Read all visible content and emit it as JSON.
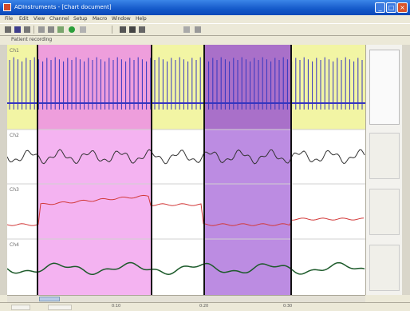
{
  "colors": {
    "selection_pink": "#f2a6ee",
    "selection_purple": "#a566d8",
    "highlight_yellow": "#f2f5a4",
    "trace_blue": "#3535c0",
    "trace_red": "#d23a3a",
    "trace_green": "#1c5a2a",
    "trace_black": "#333333",
    "titlebar": "#1459c9"
  },
  "window": {
    "title": "ADInstruments - [Chart document]",
    "minimize_icon": "minimize-icon",
    "maximize_icon": "maximize-icon",
    "close_icon": "close-icon"
  },
  "menu": [
    "File",
    "Edit",
    "View",
    "Channel",
    "Setup",
    "Macro",
    "Window",
    "Help"
  ],
  "toolbar": {
    "icons": [
      "open-icon",
      "save-icon",
      "print-icon",
      "cut-icon",
      "copy-icon",
      "paste-icon",
      "record-icon",
      "start-icon",
      "zoom-icon",
      "marker-icon",
      "comment-icon",
      "settings-icon"
    ]
  },
  "document": {
    "file_label": "Patient recording"
  },
  "channels": [
    {
      "label": "Ch1",
      "color": "trace_blue"
    },
    {
      "label": "Ch2",
      "color": "trace_black"
    },
    {
      "label": "Ch3",
      "color": "trace_red"
    },
    {
      "label": "Ch4",
      "color": "trace_green"
    }
  ],
  "time_ticks": [
    "0:10",
    "0:20",
    "0:30",
    "0:40"
  ]
}
